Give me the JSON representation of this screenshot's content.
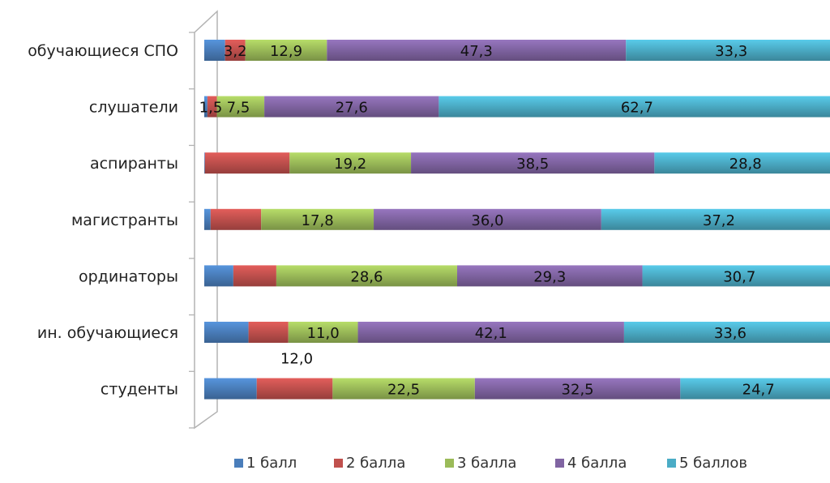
{
  "chart_data": {
    "type": "bar",
    "orientation": "horizontal",
    "stacked": true,
    "categories": [
      "обучающиеся СПО",
      "слушатели",
      "аспиранты",
      "магистранты",
      "ординаторы",
      "ин. обучающиеся",
      "студенты"
    ],
    "series": [
      {
        "name": "1 балл",
        "color": "#4a7ebb",
        "values": [
          3.3,
          0.5,
          0.1,
          1.0,
          4.6,
          7.0,
          8.3
        ],
        "labels": [
          "",
          "",
          "",
          "",
          "",
          "",
          ""
        ]
      },
      {
        "name": "2 балла",
        "color": "#c0504d",
        "values": [
          3.2,
          1.5,
          13.4,
          8.0,
          6.8,
          6.3,
          12.0
        ],
        "labels": [
          "3,2",
          "1,5",
          "",
          "",
          "",
          "",
          "12,0"
        ]
      },
      {
        "name": "3 балла",
        "color": "#9bbb59",
        "values": [
          12.9,
          7.5,
          19.2,
          17.8,
          28.6,
          11.0,
          22.5
        ],
        "labels": [
          "12,9",
          "7,5",
          "19,2",
          "17,8",
          "28,6",
          "11,0",
          "22,5"
        ]
      },
      {
        "name": "4 балла",
        "color": "#8064a2",
        "values": [
          47.3,
          27.6,
          38.5,
          36.0,
          29.3,
          42.1,
          32.5
        ],
        "labels": [
          "47,3",
          "27,6",
          "38,5",
          "36,0",
          "29,3",
          "42,1",
          "32,5"
        ]
      },
      {
        "name": "5 баллов",
        "color": "#4bacc6",
        "values": [
          33.3,
          62.7,
          28.8,
          37.2,
          30.7,
          33.6,
          24.7
        ],
        "labels": [
          "33,3",
          "62,7",
          "28,8",
          "37,2",
          "30,7",
          "33,6",
          "24,7"
        ]
      }
    ],
    "xlim": [
      0,
      100
    ],
    "legend": "bottom",
    "grid": false
  }
}
